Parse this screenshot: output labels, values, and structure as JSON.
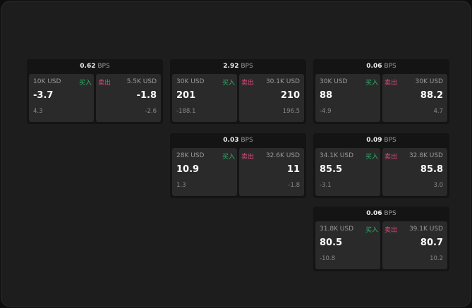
{
  "unit": "BPS",
  "buy_label": "买入",
  "sell_label": "卖出",
  "colors": {
    "buy": "#2fb36b",
    "sell": "#e0487a"
  },
  "cards": [
    {
      "spread": "0.62",
      "buy": {
        "qty": "10K USD",
        "price": "-3.7",
        "change": "4.3"
      },
      "sell": {
        "qty": "5.5K USD",
        "price": "-1.8",
        "change": "-2.6"
      }
    },
    {
      "spread": "2.92",
      "buy": {
        "qty": "30K USD",
        "price": "201",
        "change": "-188.1"
      },
      "sell": {
        "qty": "30.1K USD",
        "price": "210",
        "change": "196.5"
      }
    },
    {
      "spread": "0.06",
      "buy": {
        "qty": "30K USD",
        "price": "88",
        "change": "-4.9"
      },
      "sell": {
        "qty": "30K USD",
        "price": "88.2",
        "change": "4.7"
      }
    },
    {
      "spread": "0.03",
      "buy": {
        "qty": "28K USD",
        "price": "10.9",
        "change": "1.3"
      },
      "sell": {
        "qty": "32.6K USD",
        "price": "11",
        "change": "-1.8"
      }
    },
    {
      "spread": "0.09",
      "buy": {
        "qty": "34.1K USD",
        "price": "85.5",
        "change": "-3.1"
      },
      "sell": {
        "qty": "32.8K USD",
        "price": "85.8",
        "change": "3.0"
      }
    },
    {
      "spread": "0.06",
      "buy": {
        "qty": "31.8K USD",
        "price": "80.5",
        "change": "-10.8"
      },
      "sell": {
        "qty": "39.1K USD",
        "price": "80.7",
        "change": "10.2"
      }
    }
  ]
}
